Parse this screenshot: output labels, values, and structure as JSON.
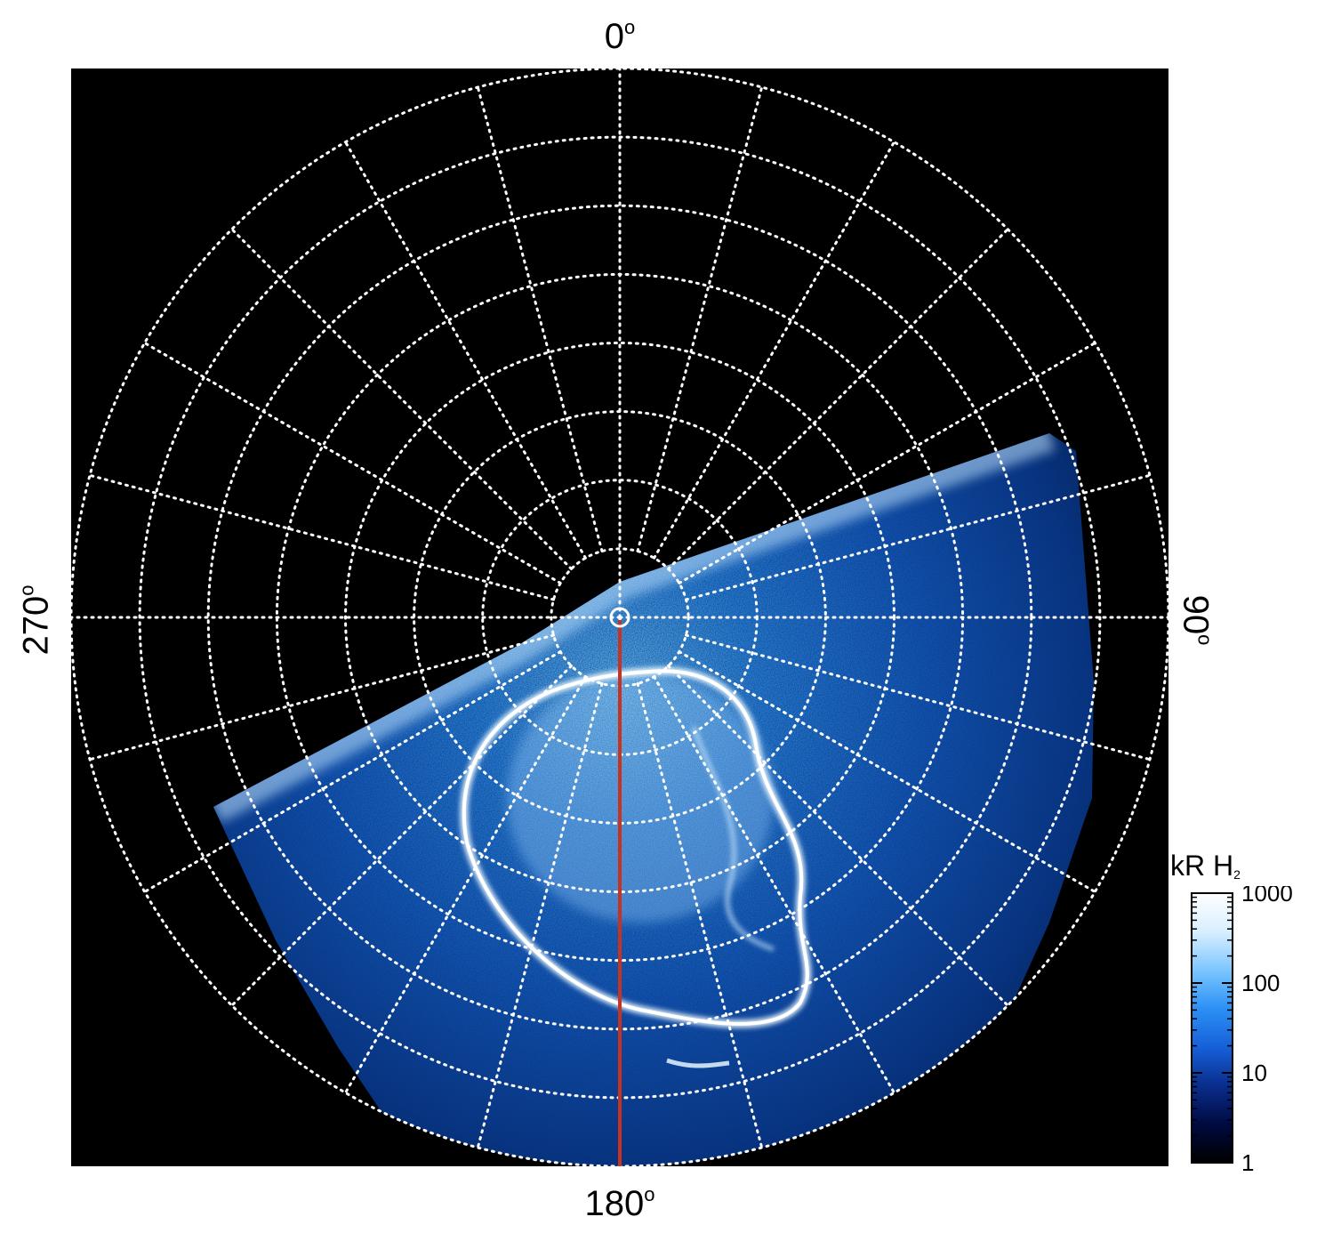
{
  "figure": {
    "label_top": "0",
    "label_right": "90",
    "label_bottom": "180",
    "label_left": "270",
    "degree_symbol": "o"
  },
  "colorbar": {
    "title_main": "kR H",
    "title_sub": "2",
    "scale": "log",
    "range": [
      1,
      1000
    ],
    "ticks": [
      {
        "value": 1,
        "label": "1"
      },
      {
        "value": 10,
        "label": "10"
      },
      {
        "value": 100,
        "label": "100"
      },
      {
        "value": 1000,
        "label": "1000"
      }
    ],
    "colors": [
      "#000000",
      "#000a40",
      "#0a2d8c",
      "#1660d8",
      "#2b90f5",
      "#7cc6ff",
      "#d8efff",
      "#ffffff"
    ]
  },
  "grid": {
    "line_color": "#ffffff",
    "style": "dotted",
    "meridian_step_deg": 15,
    "latitude_circles": 8
  },
  "highlight_line": {
    "color": "#c8321e",
    "longitude_deg": 180
  }
}
